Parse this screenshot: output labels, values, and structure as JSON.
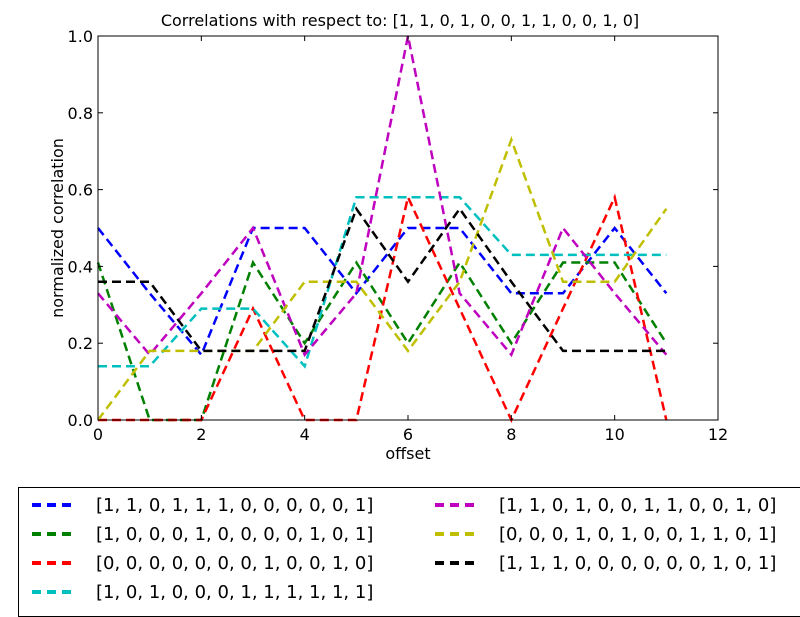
{
  "chart_data": {
    "type": "line",
    "title": "Correlations with respect to: [1, 1, 0, 1, 0, 0, 1, 1, 0, 0, 1, 0]",
    "xlabel": "offset",
    "ylabel": "normalized correlation",
    "xlim": [
      0,
      12
    ],
    "ylim": [
      0.0,
      1.0
    ],
    "xticks": [
      "0",
      "2",
      "4",
      "6",
      "8",
      "10",
      "12"
    ],
    "yticks": [
      "0.0",
      "0.2",
      "0.4",
      "0.6",
      "0.8",
      "1.0"
    ],
    "grid": false,
    "legend_position": "below",
    "line_style": "dashed",
    "x": [
      0,
      1,
      2,
      3,
      4,
      5,
      6,
      7,
      8,
      9,
      10,
      11
    ],
    "series": [
      {
        "name": "[1, 1, 0, 1, 1, 1, 0, 0, 0, 0, 0, 1]",
        "color": "#0000ff",
        "values": [
          0.5,
          0.33,
          0.17,
          0.5,
          0.5,
          0.33,
          0.5,
          0.5,
          0.33,
          0.33,
          0.5,
          0.33
        ]
      },
      {
        "name": "[1, 0, 0, 0, 1, 0, 0, 0, 0, 1, 0, 1]",
        "color": "#008000",
        "values": [
          0.41,
          0.0,
          0.0,
          0.41,
          0.2,
          0.41,
          0.2,
          0.41,
          0.2,
          0.41,
          0.41,
          0.2
        ]
      },
      {
        "name": "[0, 0, 0, 0, 0, 0, 0, 1, 0, 0, 1, 0]",
        "color": "#ff0000",
        "values": [
          0.0,
          0.0,
          0.0,
          0.29,
          0.0,
          0.0,
          0.58,
          0.29,
          0.0,
          0.29,
          0.58,
          0.0
        ]
      },
      {
        "name": "[1, 0, 1, 0, 0, 0, 1, 1, 1, 1, 1, 1]",
        "color": "#00bfbf",
        "values": [
          0.14,
          0.14,
          0.29,
          0.29,
          0.14,
          0.58,
          0.58,
          0.58,
          0.43,
          0.43,
          0.43,
          0.43
        ]
      },
      {
        "name": "[1, 1, 0, 1, 0, 0, 1, 1, 0, 0, 1, 0]",
        "color": "#bf00bf",
        "values": [
          0.33,
          0.17,
          0.33,
          0.5,
          0.17,
          0.33,
          1.0,
          0.33,
          0.17,
          0.5,
          0.33,
          0.17
        ]
      },
      {
        "name": "[0, 0, 0, 1, 0, 1, 0, 0, 1, 1, 0, 1]",
        "color": "#bfbf00",
        "values": [
          0.0,
          0.18,
          0.18,
          0.18,
          0.36,
          0.36,
          0.18,
          0.36,
          0.73,
          0.36,
          0.36,
          0.55
        ]
      },
      {
        "name": "[1, 1, 1, 0, 0, 0, 0, 0, 0, 1, 0, 1]",
        "color": "#000000",
        "values": [
          0.36,
          0.36,
          0.18,
          0.18,
          0.18,
          0.55,
          0.36,
          0.55,
          0.36,
          0.18,
          0.18,
          0.18
        ]
      }
    ]
  }
}
